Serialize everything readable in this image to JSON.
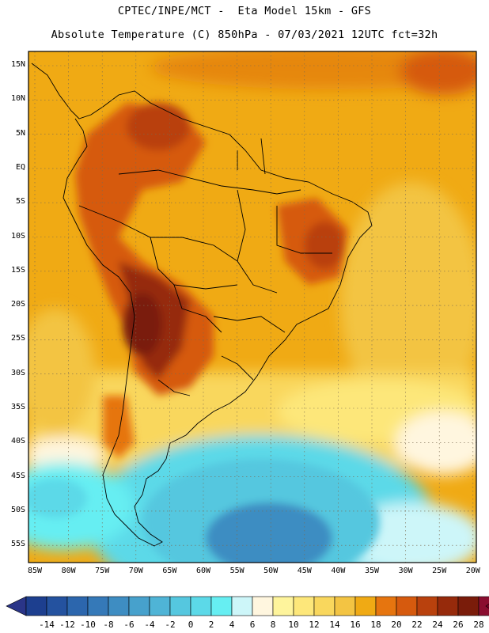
{
  "header": {
    "line1": "CPTEC/INPE/MCT -  Eta Model 15km - GFS",
    "line2": "Absolute Temperature (C) 850hPa - 07/03/2021 12UTC fct=32h"
  },
  "map": {
    "region": "South America",
    "variable": "Absolute Temperature (C) 850hPa",
    "lat_labels": [
      "15N",
      "10N",
      "5N",
      "EQ",
      "5S",
      "10S",
      "15S",
      "20S",
      "25S",
      "30S",
      "35S",
      "40S",
      "45S",
      "50S",
      "55S"
    ],
    "lon_labels": [
      "85W",
      "80W",
      "75W",
      "70W",
      "65W",
      "60W",
      "55W",
      "50W",
      "45W",
      "40W",
      "35W",
      "30W",
      "25W",
      "20W"
    ]
  },
  "colorbar": {
    "labels": [
      "-14",
      "-12",
      "-10",
      "-8",
      "-6",
      "-4",
      "-2",
      "0",
      "2",
      "4",
      "6",
      "8",
      "10",
      "12",
      "14",
      "16",
      "18",
      "20",
      "22",
      "24",
      "26",
      "28"
    ],
    "colors": [
      "#1d3f8f",
      "#24529f",
      "#2c66ad",
      "#3579b8",
      "#3e8dc2",
      "#47a1cc",
      "#4fb4d6",
      "#55c7df",
      "#5cd9e8",
      "#66eef2",
      "#cdf6f9",
      "#fff6df",
      "#fef49c",
      "#fde77a",
      "#f9d75d",
      "#f3c443",
      "#f0aa14",
      "#e6750f",
      "#d65a0e",
      "#b9410d",
      "#962a0b",
      "#7a1c0a",
      "#8a0d2f"
    ],
    "left_arrow": "#2a3588",
    "right_arrow": "#7a0026"
  }
}
